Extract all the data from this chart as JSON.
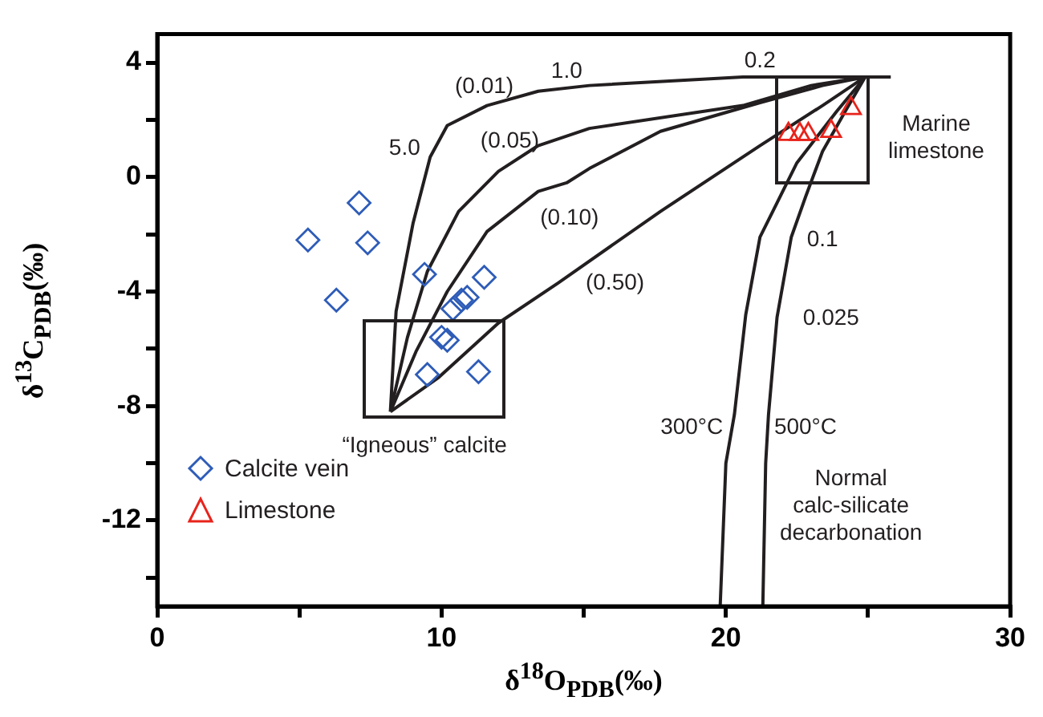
{
  "chart_data": {
    "type": "scatter",
    "xlabel": "δ$^{18}$O$_{PDB}$(‰)",
    "ylabel": "δ$^{13}$C$_{PDB}$(‰)",
    "xlim": [
      0,
      30
    ],
    "ylim": [
      -15,
      5
    ],
    "xticks": [
      0,
      {
        "value": 5,
        "label": null
      },
      10,
      {
        "value": 15,
        "label": null
      },
      20,
      {
        "value": 25,
        "label": null
      },
      30
    ],
    "yticks": [
      {
        "value": -14,
        "label": null
      },
      -12,
      {
        "value": -10,
        "label": null
      },
      -8,
      {
        "value": -6,
        "label": null
      },
      -4,
      {
        "value": -2,
        "label": null
      },
      0,
      {
        "value": 2,
        "label": null
      },
      4
    ],
    "grid": false,
    "legend": "bottom left",
    "series": [
      {
        "name": "Calcite vein",
        "type": "scatter",
        "marker": "diamond",
        "color": "#2e5cb8",
        "x": [
          7.1,
          5.3,
          7.4,
          6.3,
          9.4,
          11.5,
          10.9,
          10.7,
          10.4,
          10.0,
          10.2,
          9.5,
          11.3
        ],
        "values": [
          -0.9,
          -2.2,
          -2.3,
          -4.3,
          -3.4,
          -3.5,
          -4.2,
          -4.3,
          -4.6,
          -5.6,
          -5.7,
          -6.9,
          -6.8
        ]
      },
      {
        "name": "Limestone",
        "type": "scatter",
        "marker": "triangle",
        "color": "#e8231b",
        "x": [
          24.4,
          23.7,
          22.2,
          22.6,
          22.9
        ],
        "values": [
          2.4,
          1.6,
          1.5,
          1.5,
          1.5
        ]
      },
      {
        "type": "line",
        "marker": "none",
        "color": "#231f20",
        "x": [
          8.2,
          8.4,
          9.0,
          9.6,
          10.2,
          11.6,
          13.4,
          15.2,
          20.6,
          24.9,
          25.8,
          null,
          8.2,
          8.8,
          9.5,
          10.6,
          12.0,
          13.4,
          15.2,
          20.6,
          23.0,
          24.9
        ],
        "values": [
          -8.2,
          -4.7,
          -1.6,
          0.7,
          1.8,
          2.5,
          3.0,
          3.2,
          3.5,
          3.5,
          3.5,
          null,
          -8.2,
          -5.6,
          -3.3,
          -1.2,
          0.2,
          1.1,
          1.7,
          2.5,
          3.2,
          3.5
        ]
      },
      {
        "type": "line",
        "marker": "none",
        "color": "#231f20",
        "x": [
          8.2,
          9.1,
          10.2,
          11.6,
          13.4,
          14.4,
          15.2,
          17.7,
          21.2,
          23.4,
          24.9,
          null,
          8.2,
          9.9,
          12.0,
          14.1,
          17.7,
          21.2,
          23.4,
          24.9
        ],
        "values": [
          -8.2,
          -6.1,
          -4.0,
          -1.9,
          -0.5,
          -0.2,
          0.3,
          1.6,
          2.6,
          3.2,
          3.5,
          null,
          -8.2,
          -7.0,
          -5.1,
          -3.7,
          -1.2,
          1.1,
          2.5,
          3.5
        ]
      },
      {
        "type": "line",
        "marker": "none",
        "color": "#231f20",
        "x": [
          24.9,
          23.9,
          22.5,
          21.2,
          20.7,
          20.3,
          20.0,
          19.8
        ],
        "values": [
          3.5,
          2.3,
          0.5,
          -2.1,
          -4.8,
          -8.3,
          -10.0,
          -15.0
        ]
      },
      {
        "type": "line",
        "marker": "none",
        "color": "#231f20",
        "x": [
          24.9,
          24.2,
          23.4,
          22.8,
          22.3,
          21.8,
          21.5,
          21.4,
          21.3
        ],
        "values": [
          3.5,
          2.3,
          0.9,
          -0.7,
          -2.1,
          -4.9,
          -8.3,
          -10.0,
          -15.0
        ]
      }
    ],
    "annotations": [
      "(0.01)",
      "1.0",
      "5.0",
      "(0.05)",
      "(0.10)",
      "(0.50)",
      "0.2",
      "0.1",
      "0.025",
      "300°C",
      "500°C",
      "Marine\nlimestone",
      "“Igneous” calcite",
      "Normal\ncalc-silicate\ndecarbonation"
    ]
  }
}
